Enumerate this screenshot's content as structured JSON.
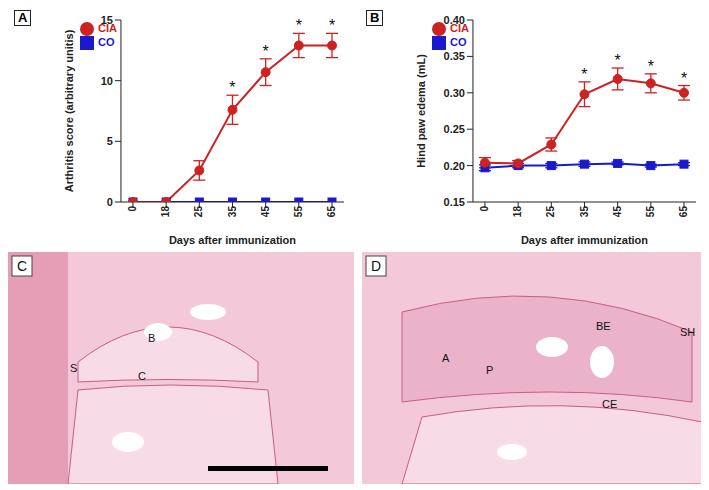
{
  "chart_data": [
    {
      "type": "line",
      "title": "A",
      "x_label": "Days after immunization",
      "y_label": "Arthritis score (arbitrary unitis)",
      "categories": [
        "0",
        "18",
        "25",
        "35",
        "45",
        "55",
        "65"
      ],
      "ylim": [
        0,
        15
      ],
      "yticks": [
        0,
        5,
        10,
        15
      ],
      "legend": "top-left",
      "series": [
        {
          "name": "CO",
          "color": "#1a1acc",
          "marker": "square",
          "values": [
            0,
            0,
            0,
            0,
            0,
            0,
            0
          ],
          "errors": [
            0,
            0,
            0,
            0,
            0,
            0,
            0
          ]
        },
        {
          "name": "CIA",
          "color": "#cc2222",
          "marker": "circle",
          "values": [
            0,
            0,
            2.6,
            7.6,
            10.7,
            12.9,
            12.9
          ],
          "errors": [
            0,
            0,
            0.8,
            1.2,
            1.1,
            1.0,
            1.0
          ]
        }
      ],
      "annotations": [
        {
          "x": "35",
          "text": "*"
        },
        {
          "x": "45",
          "text": "*"
        },
        {
          "x": "55",
          "text": "*"
        },
        {
          "x": "65",
          "text": "*"
        }
      ]
    },
    {
      "type": "line",
      "title": "B",
      "x_label": "Days after immunization",
      "y_label": "Hind paw edema (mL)",
      "categories": [
        "0",
        "18",
        "25",
        "35",
        "45",
        "55",
        "65"
      ],
      "ylim": [
        0.15,
        0.4
      ],
      "yticks": [
        0.15,
        {
          "value": 0.2,
          "label": "0.20"
        },
        0.25,
        {
          "value": 0.3,
          "label": "0.30"
        },
        0.35,
        {
          "value": 0.4,
          "label": "0.40"
        }
      ],
      "legend": "top-left",
      "series": [
        {
          "name": "CO",
          "color": "#1a1acc",
          "marker": "square",
          "values": [
            0.197,
            0.2,
            0.2,
            0.202,
            0.203,
            0.2,
            0.202
          ],
          "errors": [
            0.004,
            0.003,
            0.003,
            0.003,
            0.002,
            0.002,
            0.002
          ]
        },
        {
          "name": "CIA",
          "color": "#cc2222",
          "marker": "circle",
          "values": [
            0.204,
            0.203,
            0.229,
            0.298,
            0.319,
            0.313,
            0.3
          ],
          "errors": [
            0.007,
            0.004,
            0.009,
            0.017,
            0.015,
            0.013,
            0.01
          ]
        }
      ],
      "annotations": [
        {
          "x": "35",
          "text": "*"
        },
        {
          "x": "45",
          "text": "*"
        },
        {
          "x": "55",
          "text": "*"
        },
        {
          "x": "65",
          "text": "*"
        }
      ]
    }
  ],
  "images": [
    {
      "label": "C",
      "annotations": [
        "S",
        "B",
        "C"
      ]
    },
    {
      "label": "D",
      "annotations": [
        "A",
        "P",
        "BE",
        "SH",
        "CE"
      ]
    }
  ]
}
